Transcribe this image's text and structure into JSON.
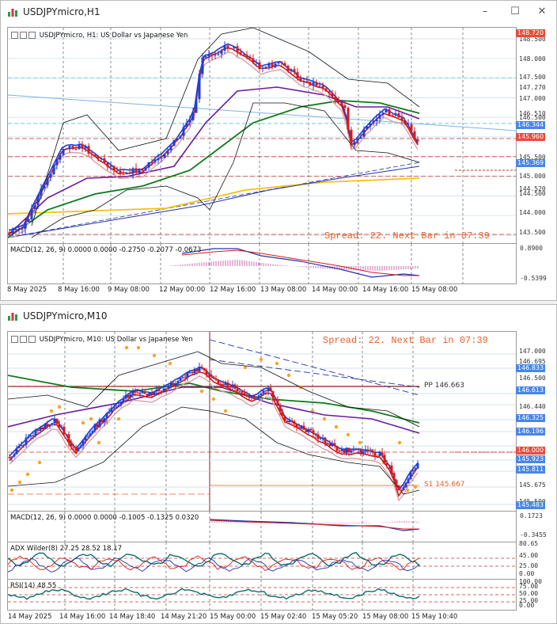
{
  "window1": {
    "title": "USDJPYmicro,H1",
    "chart_title": "USDJPYmicro, H1:  US Dollar vs Japanese Yen",
    "spread_text": "Spread: 22. Next Bar in 07:39",
    "macd_label": "MACD(12, 26, 9) 0.0000 0.0000 -0.2750 -0.2077 -0.0673",
    "macd_ticks": [
      "0.8900",
      "-0.5399"
    ],
    "price_ticks": [
      "148.500",
      "148.000",
      "147.500",
      "147.270",
      "147.000",
      "146.510",
      "146.500",
      "146.000",
      "145.500",
      "145.000",
      "144.520",
      "144.500",
      "144.000",
      "143.500"
    ],
    "price_badges": [
      "148.720",
      "146.344",
      "145.960",
      "145.369"
    ],
    "time_labels": [
      "8 May 2025",
      "8 May 16:00",
      "9 May 08:00",
      "12 May 00:00",
      "12 May 16:00",
      "13 May 08:00",
      "14 May 00:00",
      "14 May 16:00",
      "15 May 08:00"
    ]
  },
  "window2": {
    "title": "USDJPYmicro,M10",
    "chart_title": "USDJPYmicro, M10:  US Dollar vs Japanese Yen",
    "spread_text": "Spread: 22. Next Bar in 07:39",
    "pp_label": "PP 146.663",
    "s1_label": "S1 145.667",
    "price_ticks": [
      "147.000",
      "146.695",
      "146.500",
      "146.440",
      "145.675",
      "145.500"
    ],
    "price_badges": [
      "146.833",
      "146.613",
      "146.325",
      "146.196",
      "146.000",
      "145.923",
      "145.811",
      "145.483"
    ],
    "macd_label": "MACD(12, 26, 9) 0.0000 0.0000 -0.1005 -0.1325 0.0320",
    "macd_ticks": [
      "0.1723",
      "-0.3455"
    ],
    "adx_label": "ADX Wilder(8) 27.25 28.52 18.17",
    "adx_ticks": [
      "80.65",
      "45.00",
      "25.00",
      "0.00"
    ],
    "rsi_label": "RSI(14) 48.55",
    "rsi_ticks": [
      "100.00",
      "75.00",
      "50.00",
      "25.00",
      "0.00"
    ],
    "time_labels": [
      "14 May 2025",
      "14 May 16:00",
      "14 May 18:40",
      "14 May 21:20",
      "15 May 00:00",
      "15 May 02:40",
      "15 May 05:20",
      "15 May 08:00",
      "15 May 10:40"
    ]
  },
  "controls": {
    "minimize": "–",
    "maximize": "☐",
    "close": "✕"
  },
  "colors": {
    "up": "#1f3fd8",
    "down": "#d41a1a",
    "badge_blue": "#4a86e8",
    "badge_red": "#e74c3c",
    "spread": "#e8602a",
    "yellow": "#f4c20d",
    "green": "#0f7a1a",
    "purple": "#6a1b9a",
    "orange": "#f6a623"
  }
}
